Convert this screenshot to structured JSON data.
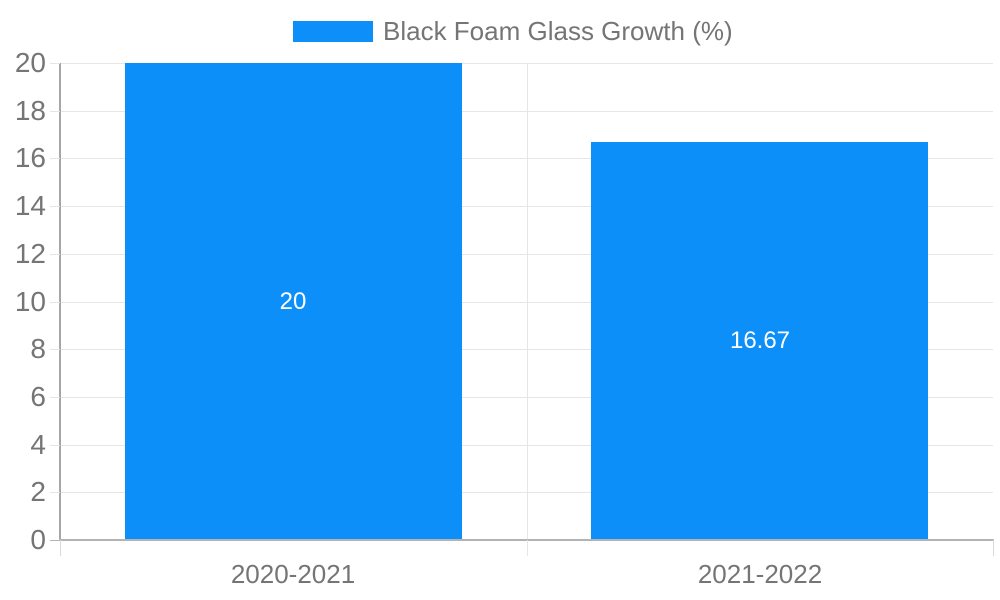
{
  "chart_data": {
    "type": "bar",
    "title": "",
    "legend": {
      "label": "Black Foam Glass Growth (%)",
      "position": "top"
    },
    "categories": [
      "2020-2021",
      "2021-2022"
    ],
    "series": [
      {
        "name": "Black Foam Glass Growth (%)",
        "values": [
          20,
          16.67
        ],
        "data_labels": [
          "20",
          "16.67"
        ]
      }
    ],
    "xlabel": "",
    "ylabel": "",
    "ylim": [
      0,
      20
    ],
    "yticks": [
      0,
      2,
      4,
      6,
      8,
      10,
      12,
      14,
      16,
      18,
      20
    ],
    "grid": true,
    "colors": {
      "bar": "#0d8ff9",
      "axis_text": "#757575",
      "data_label_text": "#ffffff",
      "gridline": "#e6e6e6",
      "axis_line": "#a6a6a6",
      "baseline": "#b3b3b3",
      "background": "#ffffff"
    }
  }
}
